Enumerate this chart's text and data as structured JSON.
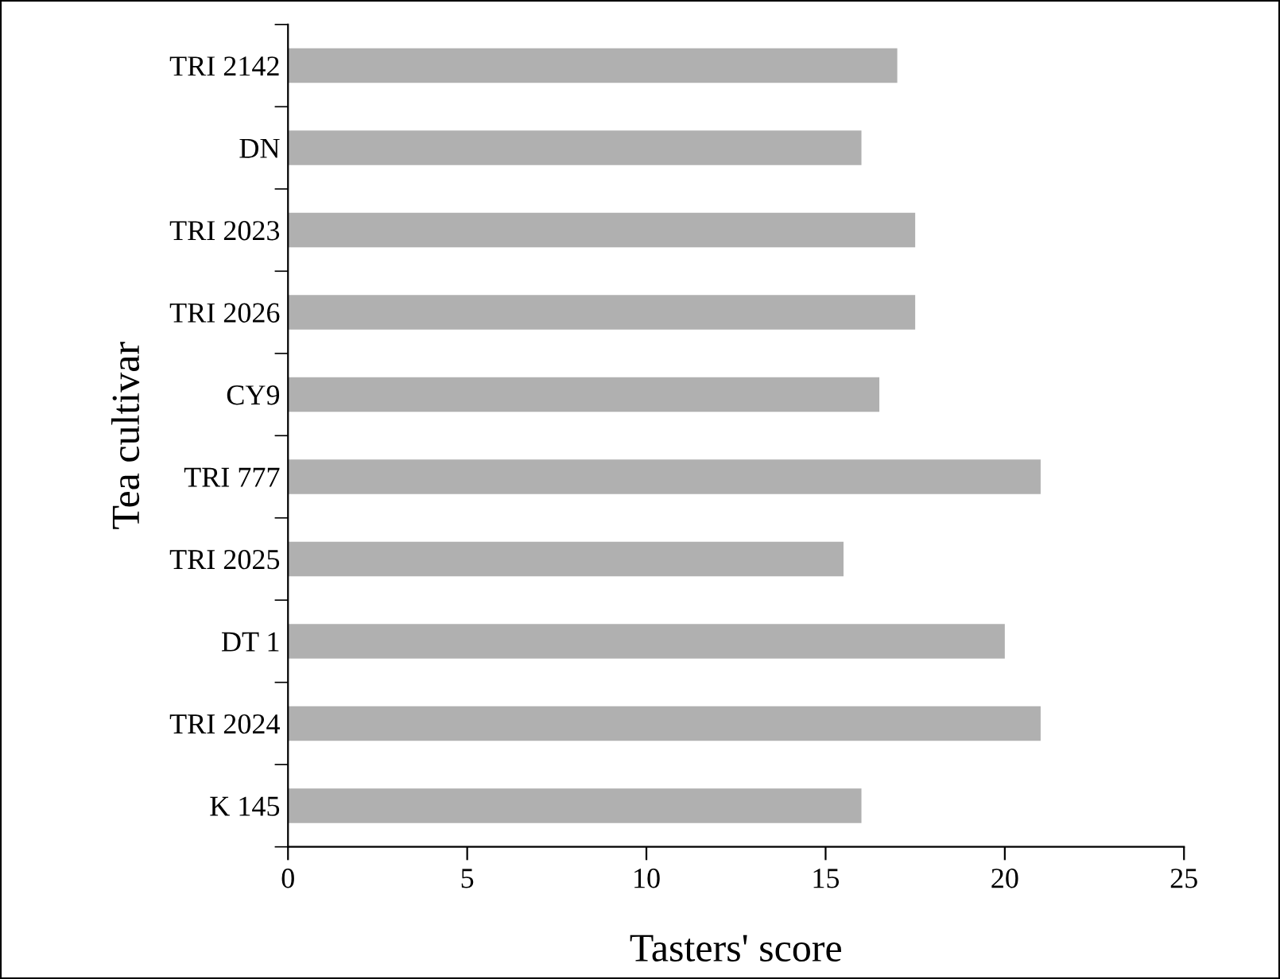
{
  "chart_data": {
    "type": "bar",
    "orientation": "horizontal",
    "xlabel": "Tasters' score",
    "ylabel": "Tea cultivar",
    "categories": [
      "TRI 2142",
      "DN",
      "TRI 2023",
      "TRI 2026",
      "CY9",
      "TRI 777",
      "TRI 2025",
      "DT 1",
      "TRI 2024",
      "K 145"
    ],
    "values": [
      17,
      16,
      17.5,
      17.5,
      16.5,
      21,
      15.5,
      20,
      21,
      16
    ],
    "color": "#b0b0b0",
    "xlim": [
      0,
      25
    ],
    "xticks": [
      0,
      5,
      10,
      15,
      20,
      25
    ],
    "grid": false,
    "legend": false
  }
}
